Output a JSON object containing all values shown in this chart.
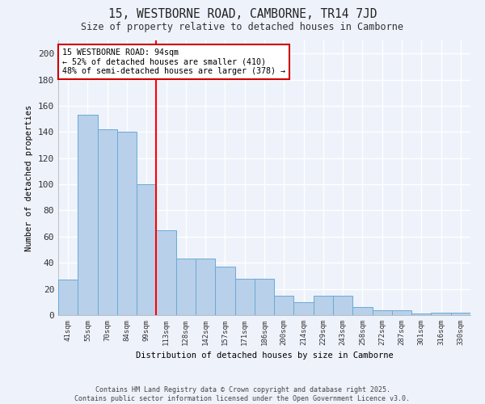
{
  "title": "15, WESTBORNE ROAD, CAMBORNE, TR14 7JD",
  "subtitle": "Size of property relative to detached houses in Camborne",
  "xlabel": "Distribution of detached houses by size in Camborne",
  "ylabel": "Number of detached properties",
  "categories": [
    "41sqm",
    "55sqm",
    "70sqm",
    "84sqm",
    "99sqm",
    "113sqm",
    "128sqm",
    "142sqm",
    "157sqm",
    "171sqm",
    "186sqm",
    "200sqm",
    "214sqm",
    "229sqm",
    "243sqm",
    "258sqm",
    "272sqm",
    "287sqm",
    "301sqm",
    "316sqm",
    "330sqm"
  ],
  "values": [
    27,
    153,
    142,
    140,
    100,
    65,
    43,
    43,
    37,
    28,
    28,
    15,
    10,
    15,
    15,
    6,
    4,
    4,
    1,
    2,
    2
  ],
  "bar_color": "#b8d0ea",
  "bar_edge_color": "#6aaad4",
  "background_color": "#eef2fb",
  "grid_color": "#ffffff",
  "red_line_x": 4.5,
  "annotation_line1": "15 WESTBORNE ROAD: 94sqm",
  "annotation_line2": "← 52% of detached houses are smaller (410)",
  "annotation_line3": "48% of semi-detached houses are larger (378) →",
  "annotation_box_color": "#ffffff",
  "annotation_box_edge": "#cc0000",
  "ylim": [
    0,
    210
  ],
  "yticks": [
    0,
    20,
    40,
    60,
    80,
    100,
    120,
    140,
    160,
    180,
    200
  ],
  "footer_line1": "Contains HM Land Registry data © Crown copyright and database right 2025.",
  "footer_line2": "Contains public sector information licensed under the Open Government Licence v3.0."
}
